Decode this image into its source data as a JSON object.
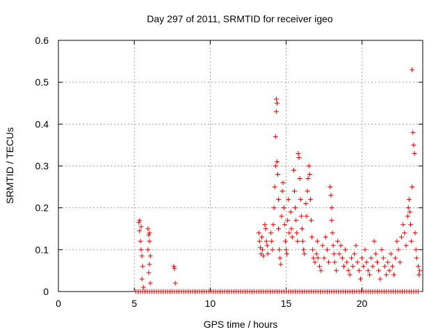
{
  "chart_data": {
    "type": "scatter",
    "title": "Day 297 of 2011, SRMTID for receiver igeo",
    "xlabel": "GPS time / hours",
    "ylabel": "SRMTID / TECUs",
    "xlim": [
      0,
      24
    ],
    "ylim": [
      0,
      0.6
    ],
    "xticks": [
      0,
      5,
      10,
      15,
      20
    ],
    "yticks": [
      0,
      0.1,
      0.2,
      0.3,
      0.4,
      0.5,
      0.6
    ],
    "xtick_labels": [
      "0",
      "5",
      "10",
      "15",
      "20"
    ],
    "ytick_labels": [
      "0",
      "0.1",
      "0.2",
      "0.3",
      "0.4",
      "0.5",
      "0.6"
    ],
    "grid": true,
    "marker": "+",
    "color": "#e00000",
    "series": [
      {
        "name": "SRMTID",
        "points": [
          [
            5.3,
            0.165
          ],
          [
            5.35,
            0.145
          ],
          [
            5.4,
            0.12
          ],
          [
            5.45,
            0.1
          ],
          [
            5.5,
            0.085
          ],
          [
            5.55,
            0.06
          ],
          [
            5.5,
            0.03
          ],
          [
            5.6,
            0.01
          ],
          [
            5.35,
            0.17
          ],
          [
            5.45,
            0.155
          ],
          [
            5.9,
            0.15
          ],
          [
            5.95,
            0.135
          ],
          [
            6.0,
            0.12
          ],
          [
            5.9,
            0.1
          ],
          [
            6.05,
            0.085
          ],
          [
            6.0,
            0.065
          ],
          [
            5.95,
            0.045
          ],
          [
            6.05,
            0.02
          ],
          [
            6.0,
            0.14
          ],
          [
            7.6,
            0.06
          ],
          [
            7.65,
            0.055
          ],
          [
            7.7,
            0.02
          ],
          [
            13.2,
            0.14
          ],
          [
            13.25,
            0.12
          ],
          [
            13.3,
            0.105
          ],
          [
            13.35,
            0.09
          ],
          [
            13.4,
            0.13
          ],
          [
            13.45,
            0.1
          ],
          [
            13.5,
            0.085
          ],
          [
            13.6,
            0.16
          ],
          [
            13.65,
            0.15
          ],
          [
            13.7,
            0.12
          ],
          [
            13.75,
            0.11
          ],
          [
            13.8,
            0.09
          ],
          [
            14.0,
            0.14
          ],
          [
            14.05,
            0.12
          ],
          [
            14.1,
            0.1
          ],
          [
            14.15,
            0.16
          ],
          [
            14.2,
            0.2
          ],
          [
            14.25,
            0.25
          ],
          [
            14.3,
            0.3
          ],
          [
            14.3,
            0.37
          ],
          [
            14.35,
            0.43
          ],
          [
            14.35,
            0.46
          ],
          [
            14.4,
            0.45
          ],
          [
            14.4,
            0.31
          ],
          [
            14.45,
            0.28
          ],
          [
            14.5,
            0.22
          ],
          [
            14.5,
            0.15
          ],
          [
            14.55,
            0.1
          ],
          [
            14.6,
            0.08
          ],
          [
            14.65,
            0.065
          ],
          [
            14.7,
            0.18
          ],
          [
            14.75,
            0.24
          ],
          [
            14.8,
            0.26
          ],
          [
            14.85,
            0.2
          ],
          [
            14.9,
            0.16
          ],
          [
            14.95,
            0.12
          ],
          [
            15.0,
            0.1
          ],
          [
            15.05,
            0.09
          ],
          [
            15.1,
            0.17
          ],
          [
            15.15,
            0.22
          ],
          [
            15.2,
            0.14
          ],
          [
            15.3,
            0.19
          ],
          [
            15.35,
            0.15
          ],
          [
            15.4,
            0.13
          ],
          [
            15.5,
            0.29
          ],
          [
            15.55,
            0.24
          ],
          [
            15.6,
            0.2
          ],
          [
            15.65,
            0.17
          ],
          [
            15.7,
            0.14
          ],
          [
            15.75,
            0.12
          ],
          [
            15.8,
            0.33
          ],
          [
            15.85,
            0.32
          ],
          [
            15.9,
            0.27
          ],
          [
            15.95,
            0.22
          ],
          [
            16.0,
            0.18
          ],
          [
            16.05,
            0.15
          ],
          [
            16.1,
            0.12
          ],
          [
            16.15,
            0.1
          ],
          [
            16.2,
            0.09
          ],
          [
            16.3,
            0.21
          ],
          [
            16.35,
            0.18
          ],
          [
            16.4,
            0.24
          ],
          [
            16.45,
            0.27
          ],
          [
            16.5,
            0.3
          ],
          [
            16.55,
            0.28
          ],
          [
            16.6,
            0.22
          ],
          [
            16.65,
            0.17
          ],
          [
            16.7,
            0.13
          ],
          [
            16.75,
            0.1
          ],
          [
            16.8,
            0.08
          ],
          [
            16.9,
            0.07
          ],
          [
            17.0,
            0.09
          ],
          [
            17.05,
            0.12
          ],
          [
            17.1,
            0.08
          ],
          [
            17.2,
            0.06
          ],
          [
            17.3,
            0.05
          ],
          [
            17.4,
            0.11
          ],
          [
            17.5,
            0.08
          ],
          [
            17.6,
            0.13
          ],
          [
            17.7,
            0.1
          ],
          [
            17.8,
            0.07
          ],
          [
            17.9,
            0.25
          ],
          [
            17.95,
            0.23
          ],
          [
            18.0,
            0.2
          ],
          [
            18.0,
            0.17
          ],
          [
            18.05,
            0.14
          ],
          [
            18.1,
            0.11
          ],
          [
            18.15,
            0.09
          ],
          [
            18.2,
            0.07
          ],
          [
            18.3,
            0.05
          ],
          [
            18.4,
            0.12
          ],
          [
            18.5,
            0.09
          ],
          [
            18.6,
            0.11
          ],
          [
            18.7,
            0.08
          ],
          [
            18.8,
            0.06
          ],
          [
            18.9,
            0.1
          ],
          [
            19.0,
            0.07
          ],
          [
            19.1,
            0.05
          ],
          [
            19.2,
            0.04
          ],
          [
            19.3,
            0.08
          ],
          [
            19.4,
            0.06
          ],
          [
            19.5,
            0.09
          ],
          [
            19.6,
            0.11
          ],
          [
            19.7,
            0.07
          ],
          [
            19.8,
            0.05
          ],
          [
            19.9,
            0.03
          ],
          [
            20.0,
            0.08
          ],
          [
            20.1,
            0.06
          ],
          [
            20.2,
            0.1
          ],
          [
            20.3,
            0.07
          ],
          [
            20.4,
            0.05
          ],
          [
            20.5,
            0.04
          ],
          [
            20.6,
            0.08
          ],
          [
            20.7,
            0.06
          ],
          [
            20.8,
            0.12
          ],
          [
            20.9,
            0.09
          ],
          [
            21.0,
            0.07
          ],
          [
            21.1,
            0.05
          ],
          [
            21.2,
            0.03
          ],
          [
            21.3,
            0.1
          ],
          [
            21.4,
            0.08
          ],
          [
            21.5,
            0.06
          ],
          [
            21.6,
            0.04
          ],
          [
            21.7,
            0.07
          ],
          [
            21.8,
            0.05
          ],
          [
            21.9,
            0.09
          ],
          [
            22.0,
            0.06
          ],
          [
            22.1,
            0.04
          ],
          [
            22.2,
            0.08
          ],
          [
            22.3,
            0.12
          ],
          [
            22.4,
            0.1
          ],
          [
            22.5,
            0.07
          ],
          [
            22.6,
            0.13
          ],
          [
            22.7,
            0.16
          ],
          [
            22.8,
            0.14
          ],
          [
            22.9,
            0.11
          ],
          [
            23.0,
            0.18
          ],
          [
            23.05,
            0.2
          ],
          [
            23.1,
            0.22
          ],
          [
            23.15,
            0.19
          ],
          [
            23.2,
            0.16
          ],
          [
            23.25,
            0.12
          ],
          [
            23.3,
            0.25
          ],
          [
            23.35,
            0.38
          ],
          [
            23.3,
            0.53
          ],
          [
            23.4,
            0.35
          ],
          [
            23.45,
            0.33
          ],
          [
            23.5,
            0.14
          ],
          [
            23.55,
            0.1
          ],
          [
            23.6,
            0.08
          ],
          [
            23.7,
            0.06
          ],
          [
            23.75,
            0.04
          ],
          [
            23.8,
            0.05
          ]
        ],
        "zero_from": 5.1,
        "zero_to": 23.8,
        "zero_step": 0.15
      }
    ]
  }
}
